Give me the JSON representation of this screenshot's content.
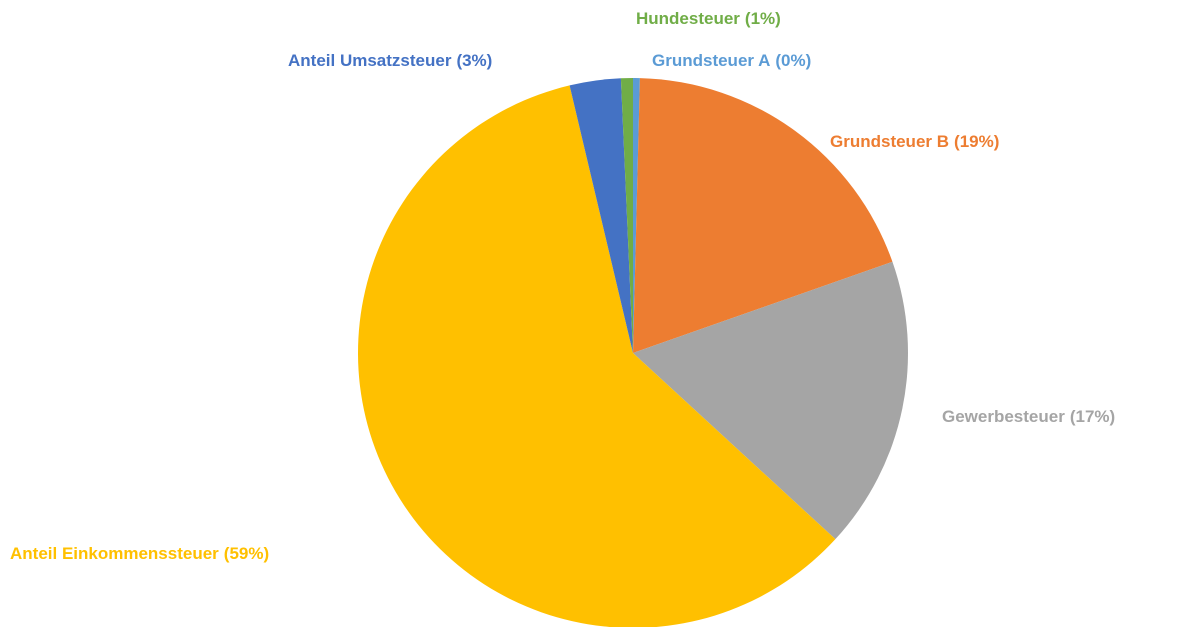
{
  "chart_data": {
    "type": "pie",
    "categories": [
      "Grundsteuer A",
      "Grundsteuer B",
      "Gewerbesteuer",
      "Anteil Einkommenssteuer",
      "Anteil Umsatzsteuer",
      "Hundesteuer"
    ],
    "values": [
      0.4,
      19.2,
      17.2,
      59.4,
      3.0,
      0.7
    ],
    "value_labels": [
      "(0%)",
      "(19%)",
      "(17%)",
      "(59%)",
      "(3%)",
      "(1%)"
    ],
    "colors": [
      "#5b9bd5",
      "#ed7d31",
      "#a5a5a5",
      "#ffc000",
      "#4472c4",
      "#70ad47"
    ]
  }
}
